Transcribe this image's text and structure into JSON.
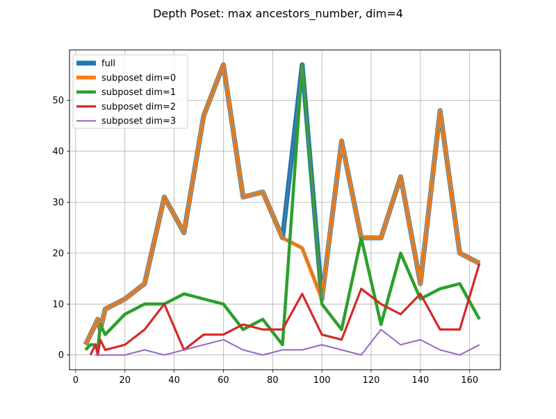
{
  "chart_data": {
    "type": "line",
    "title": "Depth Poset: max ancestors_number, dim=4",
    "xlabel": "",
    "ylabel": "",
    "xlim": [
      -2.5,
      172.5
    ],
    "ylim": [
      -2.9,
      59.9
    ],
    "xticks": [
      0,
      20,
      40,
      60,
      80,
      100,
      120,
      140,
      160
    ],
    "yticks": [
      0,
      10,
      20,
      30,
      40,
      50
    ],
    "grid": true,
    "legend_position": "top-left",
    "series": [
      {
        "name": "full",
        "color": "#1f77b4",
        "width": 7,
        "x": [
          4,
          8,
          9,
          10,
          12,
          20,
          28,
          36,
          44,
          52,
          60,
          68,
          76,
          84,
          92,
          100,
          108,
          116,
          124,
          132,
          140,
          148,
          156,
          164
        ],
        "y": [
          2,
          6,
          7,
          5,
          9,
          11,
          14,
          31,
          24,
          47,
          57,
          31,
          32,
          23,
          57,
          11,
          42,
          23,
          23,
          35,
          14,
          48,
          20,
          18
        ]
      },
      {
        "name": "subposet dim=0",
        "color": "#ff7f0e",
        "width": 5.5,
        "x": [
          4,
          8,
          9,
          10,
          12,
          20,
          28,
          36,
          44,
          52,
          60,
          68,
          76,
          84,
          92,
          100,
          108,
          116,
          124,
          132,
          140,
          148,
          156,
          164
        ],
        "y": [
          2,
          6,
          7,
          5,
          9,
          11,
          14,
          31,
          24,
          47,
          57,
          31,
          32,
          23,
          21,
          11,
          42,
          23,
          23,
          35,
          14,
          48,
          20,
          18
        ]
      },
      {
        "name": "subposet dim=1",
        "color": "#2ca02c",
        "width": 4.5,
        "x": [
          4,
          6,
          8,
          9,
          10,
          12,
          20,
          28,
          36,
          44,
          52,
          60,
          68,
          76,
          84,
          92,
          100,
          108,
          116,
          124,
          132,
          140,
          148,
          156,
          164
        ],
        "y": [
          1,
          2,
          2,
          1,
          6,
          4,
          8,
          10,
          10,
          12,
          11,
          10,
          5,
          7,
          2,
          57,
          10,
          5,
          23,
          6,
          20,
          11,
          13,
          14,
          7
        ]
      },
      {
        "name": "subposet dim=2",
        "color": "#d62728",
        "width": 3.2,
        "x": [
          6,
          8,
          9,
          10,
          12,
          20,
          28,
          36,
          44,
          52,
          60,
          68,
          76,
          84,
          92,
          100,
          108,
          116,
          124,
          132,
          140,
          148,
          156,
          164
        ],
        "y": [
          0,
          2,
          0,
          3,
          1,
          2,
          5,
          10,
          1,
          4,
          4,
          6,
          5,
          5,
          12,
          4,
          3,
          13,
          10,
          8,
          12,
          5,
          5,
          18
        ]
      },
      {
        "name": "subposet dim=3",
        "color": "#9467bd",
        "width": 2,
        "x": [
          8,
          12,
          20,
          28,
          36,
          44,
          52,
          60,
          68,
          76,
          84,
          92,
          100,
          108,
          116,
          124,
          132,
          140,
          148,
          156,
          164
        ],
        "y": [
          0,
          0,
          0,
          1,
          0,
          1,
          2,
          3,
          1,
          0,
          1,
          1,
          2,
          1,
          0,
          5,
          2,
          3,
          1,
          0,
          2
        ]
      }
    ]
  }
}
